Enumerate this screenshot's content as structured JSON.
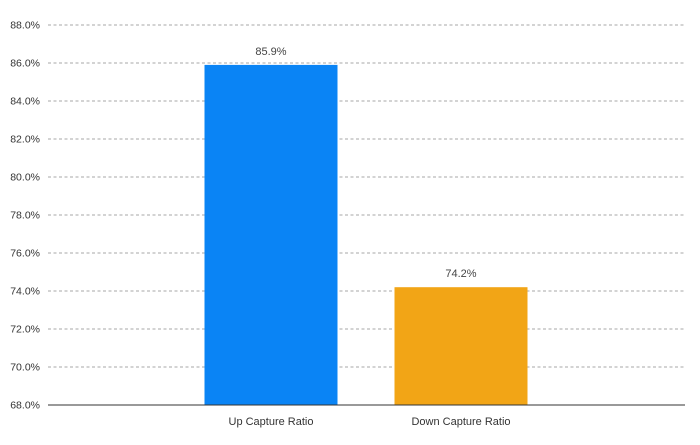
{
  "chart_data": {
    "type": "bar",
    "categories": [
      "Up Capture Ratio",
      "Down Capture Ratio"
    ],
    "values": [
      85.9,
      74.2
    ],
    "data_labels": [
      "85.9%",
      "74.2%"
    ],
    "colors": [
      "#0a84f5",
      "#f2a516"
    ],
    "ylim": [
      68,
      88
    ],
    "yticks": [
      68,
      70,
      72,
      74,
      76,
      78,
      80,
      82,
      84,
      86,
      88
    ],
    "ytick_labels": [
      "68.0%",
      "70.0%",
      "72.0%",
      "74.0%",
      "76.0%",
      "78.0%",
      "80.0%",
      "82.0%",
      "84.0%",
      "86.0%",
      "88.0%"
    ],
    "grid": true,
    "legend": "none"
  }
}
